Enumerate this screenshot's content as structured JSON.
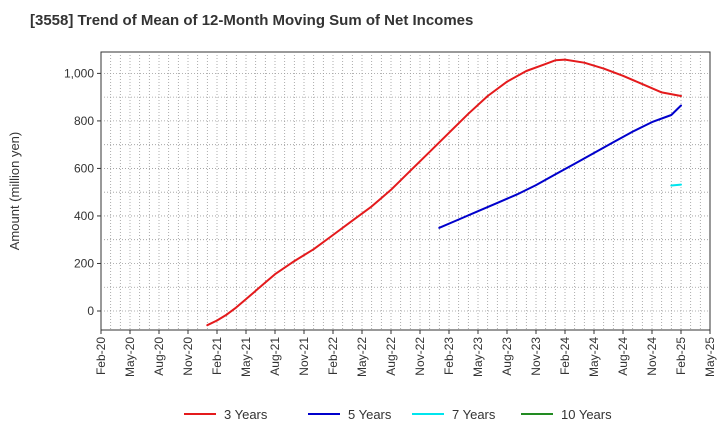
{
  "chart_data": {
    "type": "line",
    "title": "[3558]  Trend of Mean of 12-Month Moving Sum of Net Incomes",
    "ylabel": "Amount (million yen)",
    "xlabel": "",
    "ylim": [
      -80,
      1090
    ],
    "yticks": [
      0,
      200,
      400,
      600,
      800,
      1000
    ],
    "ytick_labels": [
      "0",
      "200",
      "400",
      "600",
      "800",
      "1,000"
    ],
    "xlim": [
      "2020-02",
      "2025-05"
    ],
    "xtick_labels": [
      "Feb-20",
      "May-20",
      "Aug-20",
      "Nov-20",
      "Feb-21",
      "May-21",
      "Aug-21",
      "Nov-21",
      "Feb-22",
      "May-22",
      "Aug-22",
      "Nov-22",
      "Feb-23",
      "May-23",
      "Aug-23",
      "Nov-23",
      "Feb-24",
      "May-24",
      "Aug-24",
      "Nov-24",
      "Feb-25",
      "May-25"
    ],
    "grid": true,
    "legend_position": "bottom",
    "series": [
      {
        "name": "3 Years",
        "color": "#e41a1c",
        "points": [
          [
            "2021-01",
            -60
          ],
          [
            "2021-02",
            -40
          ],
          [
            "2021-03",
            -15
          ],
          [
            "2021-04",
            15
          ],
          [
            "2021-05",
            50
          ],
          [
            "2021-06",
            85
          ],
          [
            "2021-07",
            120
          ],
          [
            "2021-08",
            155
          ],
          [
            "2021-10",
            210
          ],
          [
            "2021-12",
            260
          ],
          [
            "2022-02",
            320
          ],
          [
            "2022-04",
            380
          ],
          [
            "2022-06",
            440
          ],
          [
            "2022-08",
            510
          ],
          [
            "2022-10",
            590
          ],
          [
            "2022-12",
            670
          ],
          [
            "2023-02",
            750
          ],
          [
            "2023-04",
            830
          ],
          [
            "2023-06",
            905
          ],
          [
            "2023-08",
            965
          ],
          [
            "2023-10",
            1010
          ],
          [
            "2023-12",
            1040
          ],
          [
            "2024-01",
            1055
          ],
          [
            "2024-02",
            1058
          ],
          [
            "2024-04",
            1045
          ],
          [
            "2024-06",
            1020
          ],
          [
            "2024-08",
            990
          ],
          [
            "2024-10",
            955
          ],
          [
            "2024-12",
            920
          ],
          [
            "2025-02",
            905
          ]
        ]
      },
      {
        "name": "5 Years",
        "color": "#0000cc",
        "points": [
          [
            "2023-01",
            350
          ],
          [
            "2023-03",
            385
          ],
          [
            "2023-05",
            420
          ],
          [
            "2023-07",
            455
          ],
          [
            "2023-09",
            490
          ],
          [
            "2023-11",
            530
          ],
          [
            "2024-01",
            575
          ],
          [
            "2024-03",
            620
          ],
          [
            "2024-05",
            665
          ],
          [
            "2024-07",
            710
          ],
          [
            "2024-09",
            755
          ],
          [
            "2024-11",
            795
          ],
          [
            "2025-01",
            825
          ],
          [
            "2025-02",
            865
          ]
        ]
      },
      {
        "name": "7 Years",
        "color": "#00e5ee",
        "points": [
          [
            "2025-01",
            528
          ],
          [
            "2025-02",
            532
          ]
        ]
      },
      {
        "name": "10 Years",
        "color": "#228b22",
        "points": []
      }
    ]
  }
}
